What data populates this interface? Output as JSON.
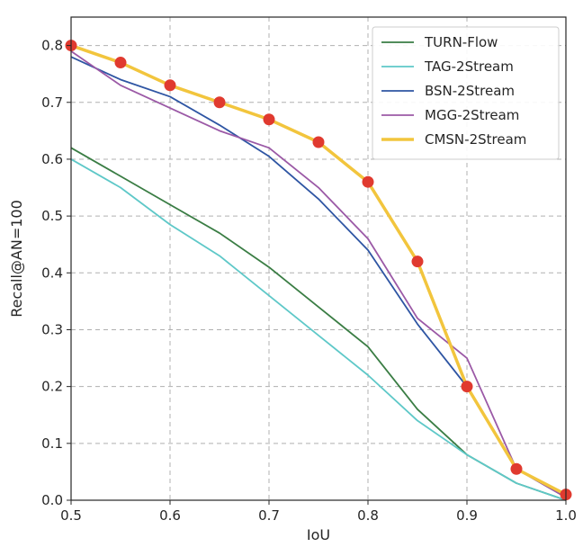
{
  "chart_data": {
    "type": "line",
    "title": "",
    "xlabel": "IoU",
    "ylabel": "Recall@AN=100",
    "xlim": [
      0.5,
      1.0
    ],
    "ylim": [
      0.0,
      0.85
    ],
    "xticks": [
      0.5,
      0.6,
      0.7,
      0.8,
      0.9,
      1.0
    ],
    "xtick_labels": [
      "0.5",
      "0.6",
      "0.7",
      "0.8",
      "0.9",
      "1.0"
    ],
    "yticks": [
      0.0,
      0.1,
      0.2,
      0.3,
      0.4,
      0.5,
      0.6,
      0.7,
      0.8
    ],
    "ytick_labels": [
      "0.0",
      "0.1",
      "0.2",
      "0.3",
      "0.4",
      "0.5",
      "0.6",
      "0.7",
      "0.8"
    ],
    "grid": true,
    "legend_position": "top-right",
    "x": [
      0.5,
      0.55,
      0.6,
      0.65,
      0.7,
      0.75,
      0.8,
      0.85,
      0.9,
      0.95,
      1.0
    ],
    "series": [
      {
        "name": "TURN-Flow",
        "color": "#3a7d44",
        "markers": false,
        "values": [
          0.62,
          0.57,
          0.52,
          0.47,
          0.41,
          0.34,
          0.27,
          0.16,
          0.08,
          0.03,
          0.0
        ]
      },
      {
        "name": "TAG-2Stream",
        "color": "#5ec8c8",
        "markers": false,
        "values": [
          0.6,
          0.55,
          0.485,
          0.43,
          0.36,
          0.29,
          0.22,
          0.14,
          0.08,
          0.03,
          0.0
        ]
      },
      {
        "name": "BSN-2Stream",
        "color": "#2e55a3",
        "markers": false,
        "values": [
          0.78,
          0.74,
          0.71,
          0.66,
          0.605,
          0.53,
          0.44,
          0.31,
          0.2,
          0.055,
          0.005
        ]
      },
      {
        "name": "MGG-2Stream",
        "color": "#9b59a6",
        "markers": false,
        "values": [
          0.79,
          0.73,
          0.69,
          0.65,
          0.62,
          0.55,
          0.46,
          0.32,
          0.25,
          0.055,
          0.005
        ]
      },
      {
        "name": "CMSN-2Stream",
        "color": "#f2c53d",
        "markers": true,
        "marker_color": "#e03a2f",
        "values": [
          0.8,
          0.77,
          0.73,
          0.7,
          0.67,
          0.63,
          0.56,
          0.42,
          0.2,
          0.055,
          0.01
        ]
      }
    ]
  }
}
